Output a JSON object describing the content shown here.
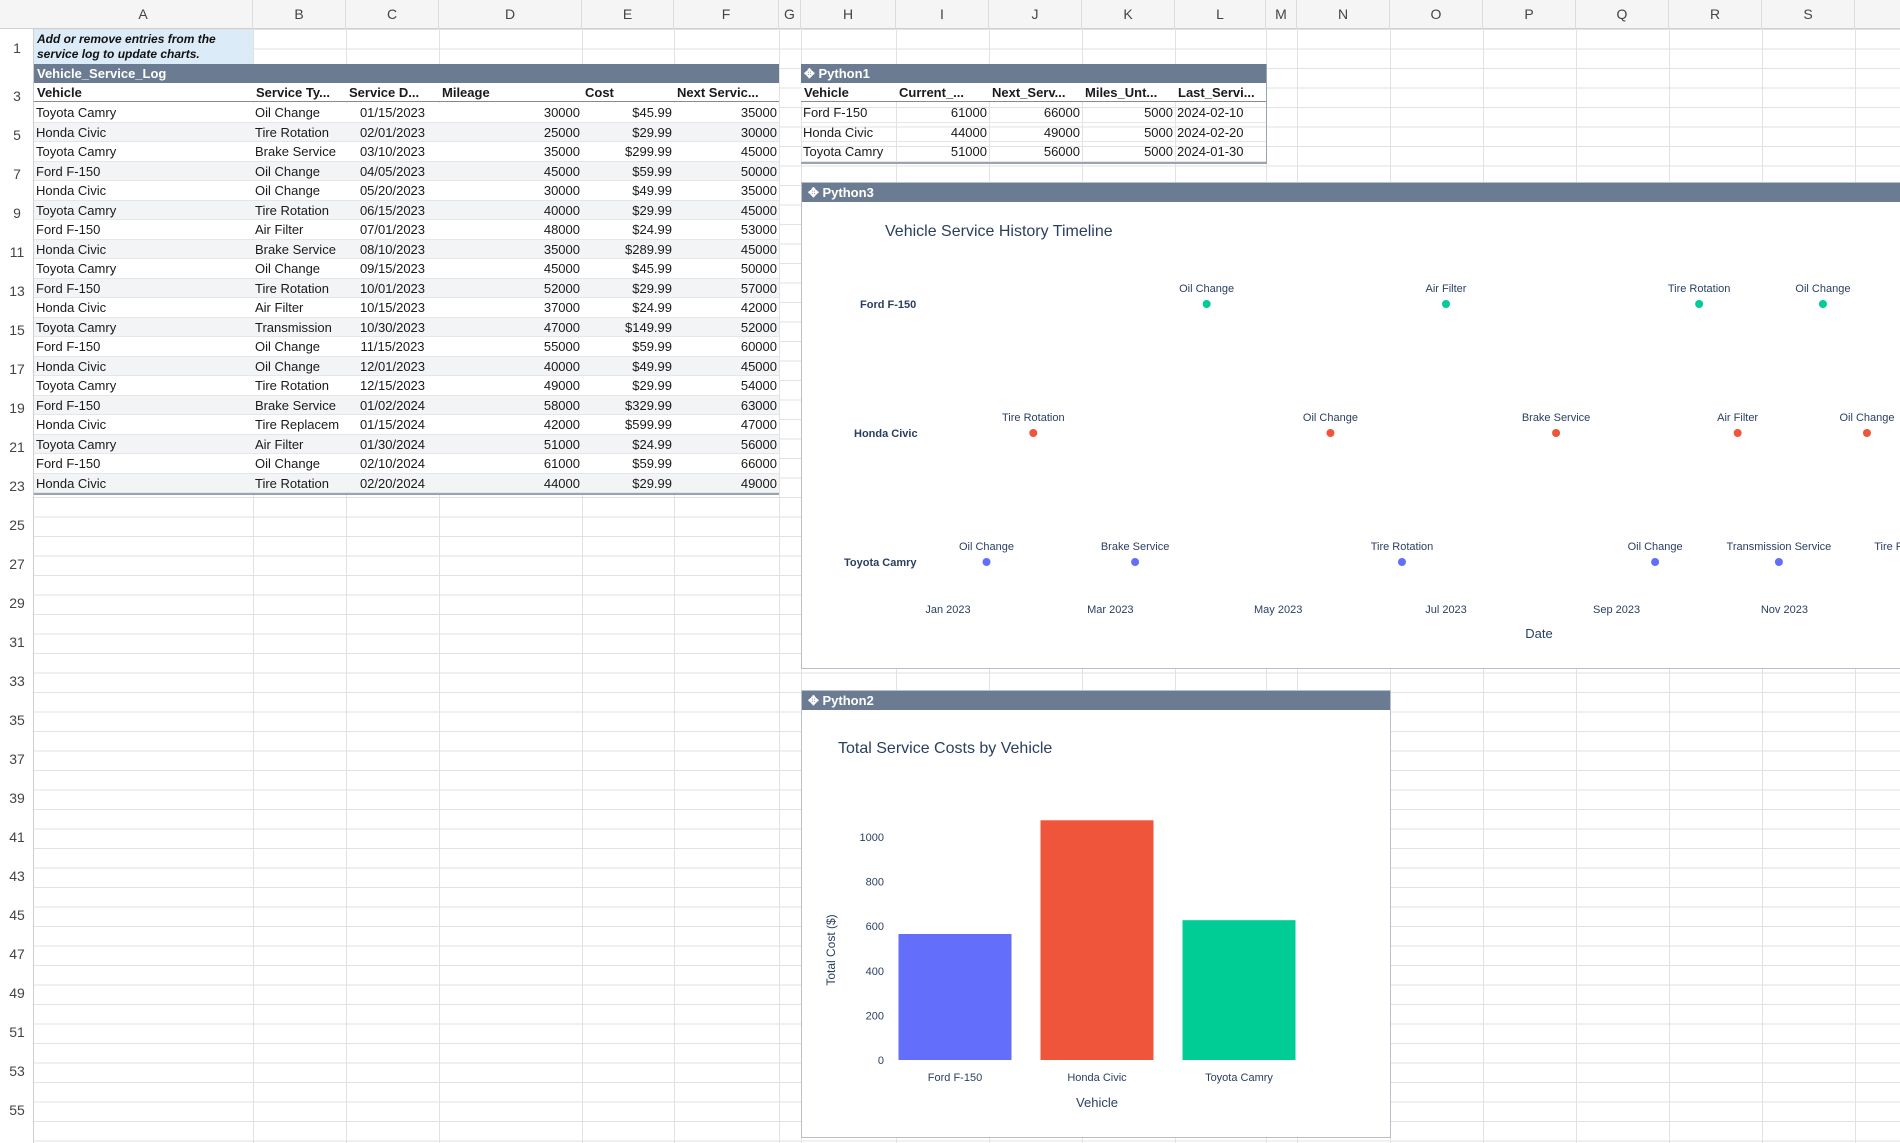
{
  "columns": [
    "A",
    "B",
    "C",
    "D",
    "E",
    "F",
    "G",
    "H",
    "I",
    "J",
    "K",
    "L",
    "M",
    "N",
    "O",
    "P",
    "Q",
    "R",
    "S"
  ],
  "row_numbers": [
    "1",
    "3",
    "5",
    "7",
    "9",
    "11",
    "13",
    "15",
    "17",
    "19",
    "21",
    "23",
    "25",
    "27",
    "29",
    "31",
    "33",
    "35",
    "37",
    "39",
    "41",
    "43",
    "45",
    "47",
    "49",
    "51",
    "53",
    "55"
  ],
  "note": "Add or remove entries from the service log to update charts.",
  "log": {
    "title": "Vehicle_Service_Log",
    "headers": [
      "Vehicle",
      "Service Ty...",
      "Service D...",
      "Mileage",
      "Cost",
      "Next Servic..."
    ],
    "rows": [
      [
        "Toyota Camry",
        "Oil Change",
        "01/15/2023",
        "30000",
        "$45.99",
        "35000"
      ],
      [
        "Honda Civic",
        "Tire Rotation",
        "02/01/2023",
        "25000",
        "$29.99",
        "30000"
      ],
      [
        "Toyota Camry",
        "Brake Service",
        "03/10/2023",
        "35000",
        "$299.99",
        "45000"
      ],
      [
        "Ford F-150",
        "Oil Change",
        "04/05/2023",
        "45000",
        "$59.99",
        "50000"
      ],
      [
        "Honda Civic",
        "Oil Change",
        "05/20/2023",
        "30000",
        "$49.99",
        "35000"
      ],
      [
        "Toyota Camry",
        "Tire Rotation",
        "06/15/2023",
        "40000",
        "$29.99",
        "45000"
      ],
      [
        "Ford F-150",
        "Air Filter",
        "07/01/2023",
        "48000",
        "$24.99",
        "53000"
      ],
      [
        "Honda Civic",
        "Brake Service",
        "08/10/2023",
        "35000",
        "$289.99",
        "45000"
      ],
      [
        "Toyota Camry",
        "Oil Change",
        "09/15/2023",
        "45000",
        "$45.99",
        "50000"
      ],
      [
        "Ford F-150",
        "Tire Rotation",
        "10/01/2023",
        "52000",
        "$29.99",
        "57000"
      ],
      [
        "Honda Civic",
        "Air Filter",
        "10/15/2023",
        "37000",
        "$24.99",
        "42000"
      ],
      [
        "Toyota Camry",
        "Transmission",
        "10/30/2023",
        "47000",
        "$149.99",
        "52000"
      ],
      [
        "Ford F-150",
        "Oil Change",
        "11/15/2023",
        "55000",
        "$59.99",
        "60000"
      ],
      [
        "Honda Civic",
        "Oil Change",
        "12/01/2023",
        "40000",
        "$49.99",
        "45000"
      ],
      [
        "Toyota Camry",
        "Tire Rotation",
        "12/15/2023",
        "49000",
        "$29.99",
        "54000"
      ],
      [
        "Ford F-150",
        "Brake Service",
        "01/02/2024",
        "58000",
        "$329.99",
        "63000"
      ],
      [
        "Honda Civic",
        "Tire Replacem",
        "01/15/2024",
        "42000",
        "$599.99",
        "47000"
      ],
      [
        "Toyota Camry",
        "Air Filter",
        "01/30/2024",
        "51000",
        "$24.99",
        "56000"
      ],
      [
        "Ford F-150",
        "Oil Change",
        "02/10/2024",
        "61000",
        "$59.99",
        "66000"
      ],
      [
        "Honda Civic",
        "Tire Rotation",
        "02/20/2024",
        "44000",
        "$29.99",
        "49000"
      ]
    ]
  },
  "python1": {
    "title": "Python1",
    "headers": [
      "Vehicle",
      "Current_...",
      "Next_Serv...",
      "Miles_Unt...",
      "Last_Servi..."
    ],
    "rows": [
      [
        "Ford F-150",
        "61000",
        "66000",
        "5000",
        "2024-02-10"
      ],
      [
        "Honda Civic",
        "44000",
        "49000",
        "5000",
        "2024-02-20"
      ],
      [
        "Toyota Camry",
        "51000",
        "56000",
        "5000",
        "2024-01-30"
      ]
    ]
  },
  "python3": {
    "title": "Python3"
  },
  "python2": {
    "title": "Python2"
  },
  "chart_data": [
    {
      "type": "scatter",
      "title": "Vehicle Service History Timeline",
      "xlabel": "Date",
      "ylabel": "",
      "x_ticks": [
        "Jan 2023",
        "Mar 2023",
        "May 2023",
        "Jul 2023",
        "Sep 2023",
        "Nov 2023"
      ],
      "x_tick_dates": [
        "2023-01-01",
        "2023-03-01",
        "2023-05-01",
        "2023-07-01",
        "2023-09-01",
        "2023-11-01"
      ],
      "categories": [
        "Ford F-150",
        "Honda Civic",
        "Toyota Camry"
      ],
      "colors": {
        "Ford F-150": "#00cc96",
        "Honda Civic": "#ef553b",
        "Toyota Camry": "#636efa"
      },
      "points": [
        {
          "vehicle": "Ford F-150",
          "date": "2023-04-05",
          "label": "Oil Change"
        },
        {
          "vehicle": "Ford F-150",
          "date": "2023-07-01",
          "label": "Air Filter"
        },
        {
          "vehicle": "Ford F-150",
          "date": "2023-10-01",
          "label": "Tire Rotation"
        },
        {
          "vehicle": "Ford F-150",
          "date": "2023-11-15",
          "label": "Oil Change"
        },
        {
          "vehicle": "Honda Civic",
          "date": "2023-02-01",
          "label": "Tire Rotation"
        },
        {
          "vehicle": "Honda Civic",
          "date": "2023-05-20",
          "label": "Oil Change"
        },
        {
          "vehicle": "Honda Civic",
          "date": "2023-08-10",
          "label": "Brake Service"
        },
        {
          "vehicle": "Honda Civic",
          "date": "2023-10-15",
          "label": "Air Filter"
        },
        {
          "vehicle": "Honda Civic",
          "date": "2023-12-01",
          "label": "Oil Change"
        },
        {
          "vehicle": "Toyota Camry",
          "date": "2023-01-15",
          "label": "Oil Change"
        },
        {
          "vehicle": "Toyota Camry",
          "date": "2023-03-10",
          "label": "Brake Service"
        },
        {
          "vehicle": "Toyota Camry",
          "date": "2023-06-15",
          "label": "Tire Rotation"
        },
        {
          "vehicle": "Toyota Camry",
          "date": "2023-09-15",
          "label": "Oil Change"
        },
        {
          "vehicle": "Toyota Camry",
          "date": "2023-10-30",
          "label": "Transmission Service"
        },
        {
          "vehicle": "Toyota Camry",
          "date": "2023-12-15",
          "label": "Tire Rotation"
        }
      ]
    },
    {
      "type": "bar",
      "title": "Total Service Costs by Vehicle",
      "xlabel": "Vehicle",
      "ylabel": "Total Cost ($)",
      "categories": [
        "Ford F-150",
        "Honda Civic",
        "Toyota Camry"
      ],
      "values": [
        565,
        1075,
        627
      ],
      "colors": [
        "#636efa",
        "#ef553b",
        "#00cc96"
      ],
      "yticks": [
        0,
        200,
        400,
        600,
        800,
        1000
      ],
      "ylim": [
        0,
        1130
      ]
    }
  ]
}
